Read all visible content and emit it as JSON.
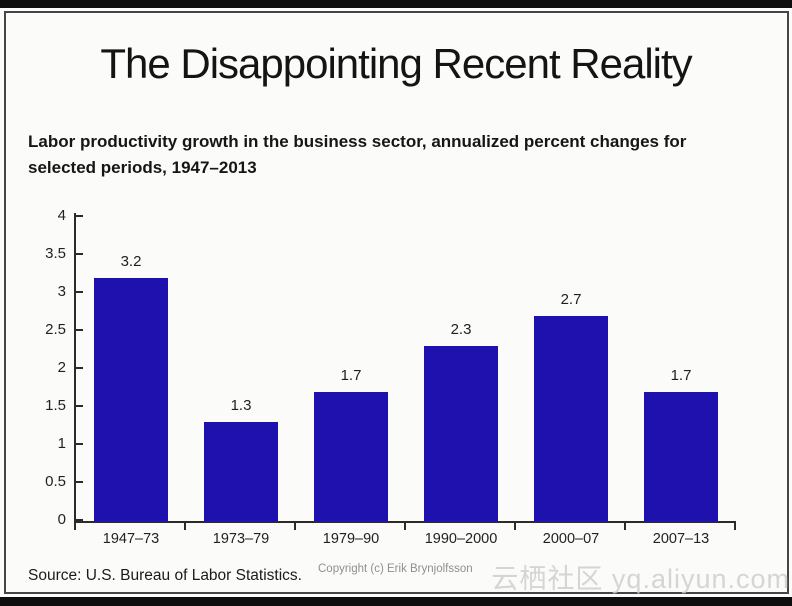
{
  "slide": {
    "title": "The Disappointing Recent Reality",
    "subtitle_line1": "Labor productivity growth in the business sector, annualized percent changes for",
    "subtitle_line2": "selected periods, 1947–2013",
    "source": "Source: U.S. Bureau of Labor Statistics.",
    "copyright": "Copyright (c) Erik Brynjolfsson",
    "watermark": "云栖社区 yq.aliyun.com"
  },
  "chart_data": {
    "type": "bar",
    "title": "Labor productivity growth in the business sector, annualized percent changes for selected periods, 1947–2013",
    "categories": [
      "1947–73",
      "1973–79",
      "1979–90",
      "1990–2000",
      "2000–07",
      "2007–13"
    ],
    "values": [
      3.2,
      1.3,
      1.7,
      2.3,
      2.7,
      1.7
    ],
    "bar_labels": [
      "3.2",
      "1.3",
      "1.7",
      "2.3",
      "2.7",
      "1.7"
    ],
    "xlabel": "",
    "ylabel": "",
    "ylim": [
      0,
      4
    ],
    "y_ticks": [
      0,
      0.5,
      1,
      1.5,
      2,
      2.5,
      3,
      3.5,
      4
    ],
    "y_tick_labels": [
      "0",
      "0.5",
      "1",
      "1.5",
      "2",
      "2.5",
      "3",
      "3.5",
      "4"
    ],
    "bar_color": "#1e11ae",
    "axis_color": "#2b2b2b",
    "grid": false,
    "legend": null
  }
}
